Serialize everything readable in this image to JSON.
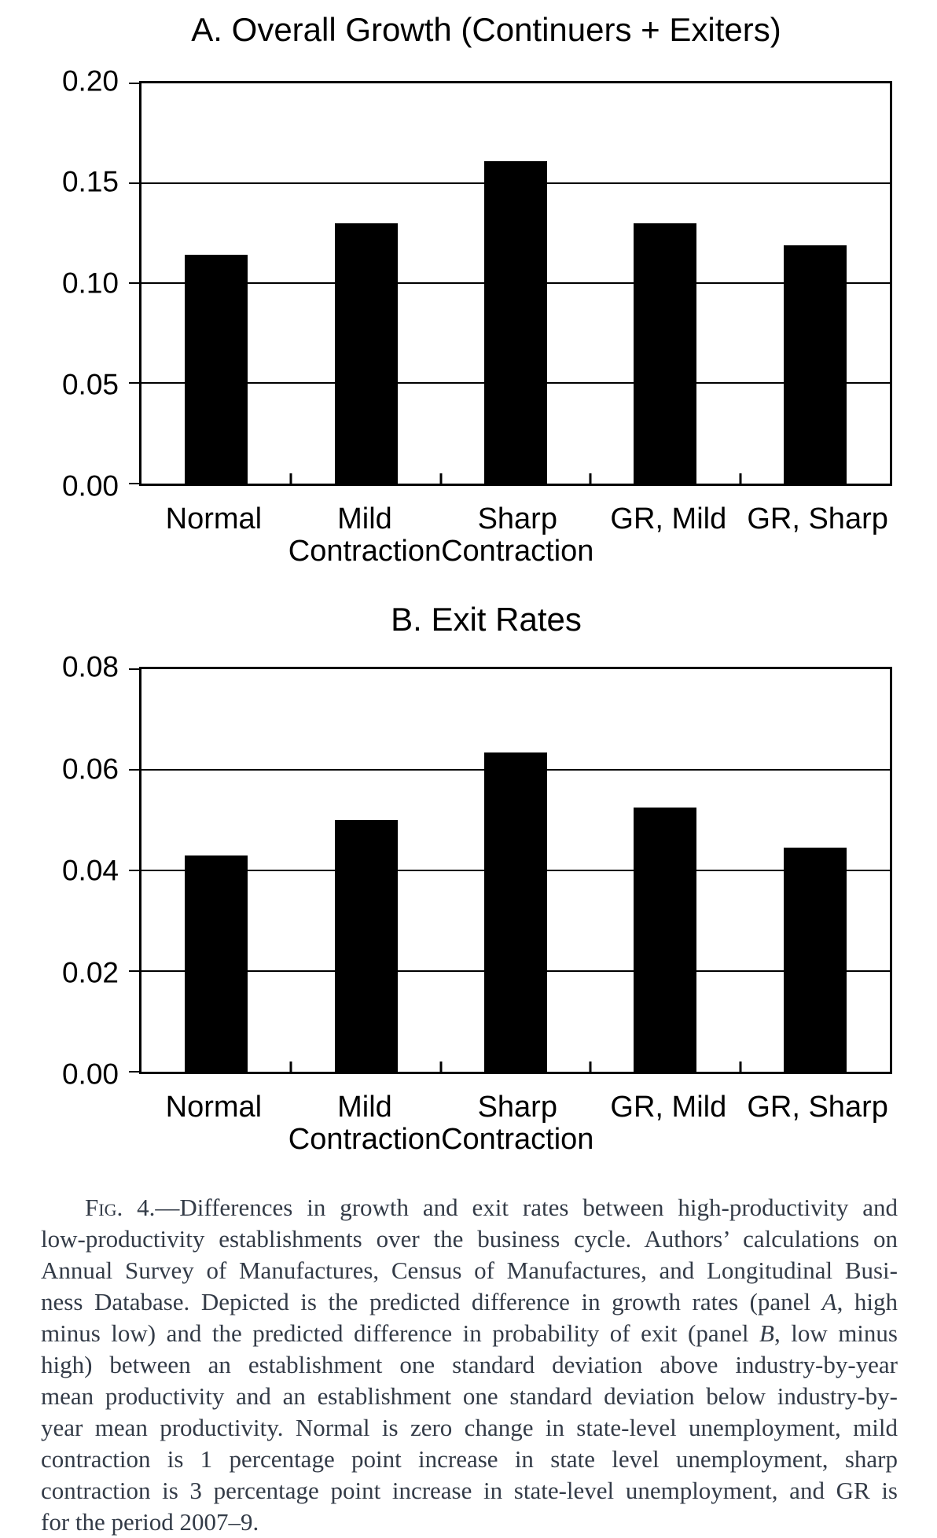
{
  "figure": {
    "caption": {
      "lines": [
        "~Fig.~ 4.—Differences in growth and exit rates between high-productivity and",
        "low-productivity establishments over the business cycle. Authors’ calculations on",
        "Annual Survey of Manufactures, Census of Manufactures, and Longitudinal Busi-",
        "ness Database. Depicted is the predicted difference in growth rates (panel *A*, high",
        "minus low) and the predicted difference in probability of exit (panel *B*, low minus",
        "high) between an establishment one standard deviation above industry-by-year",
        "mean productivity and an establishment one standard deviation below industry-by-",
        "year mean productivity. Normal is zero change in state-level unemployment, mild",
        "contraction is 1 percentage point increase in state level unemployment, sharp",
        "contraction is 3 percentage point increase in state-level unemployment, and GR is",
        "for the period 2007–9."
      ]
    }
  },
  "chart_data": [
    {
      "type": "bar",
      "title": "A. Overall Growth (Continuers + Exiters)",
      "categories": [
        "Normal",
        "Mild\nContraction",
        "Sharp\nContraction",
        "GR, Mild",
        "GR, Sharp"
      ],
      "values": [
        0.114,
        0.13,
        0.161,
        0.13,
        0.119
      ],
      "xlabel": "",
      "ylabel": "",
      "ylim": [
        0,
        0.2
      ],
      "ytick_step": 0.05,
      "ytick_labels": [
        "0.00",
        "0.05",
        "0.10",
        "0.15",
        "0.20"
      ],
      "grid": true,
      "legend_position": "none",
      "bar_color": "#000000"
    },
    {
      "type": "bar",
      "title": "B. Exit Rates",
      "categories": [
        "Normal",
        "Mild\nContraction",
        "Sharp\nContraction",
        "GR, Mild",
        "GR, Sharp"
      ],
      "values": [
        0.043,
        0.05,
        0.0635,
        0.0525,
        0.0445
      ],
      "xlabel": "",
      "ylabel": "",
      "ylim": [
        0,
        0.08
      ],
      "ytick_step": 0.02,
      "ytick_labels": [
        "0.00",
        "0.02",
        "0.04",
        "0.06",
        "0.08"
      ],
      "grid": true,
      "legend_position": "none",
      "bar_color": "#000000"
    }
  ]
}
